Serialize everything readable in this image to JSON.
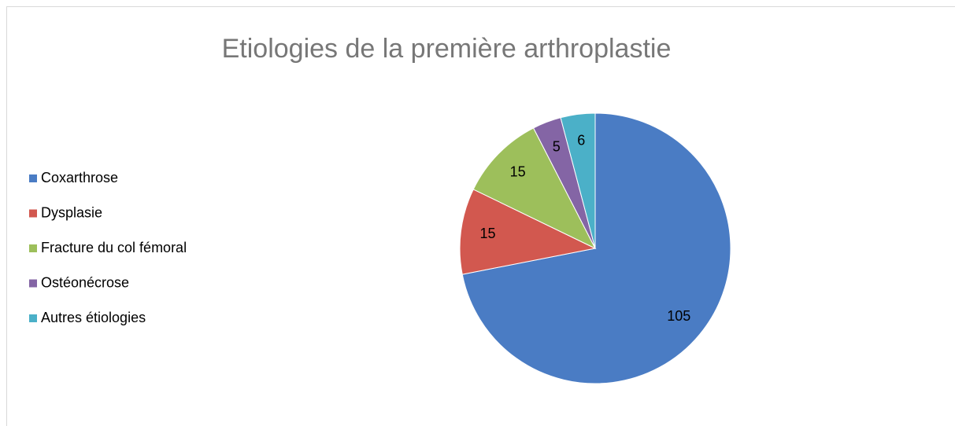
{
  "chart_data": {
    "type": "pie",
    "title": "Etiologies de la première arthroplastie",
    "categories": [
      "Coxarthrose",
      "Dysplasie",
      "Fracture du col fémoral",
      "Ostéonécrose",
      "Autres étiologies"
    ],
    "values": [
      105,
      15,
      15,
      5,
      6
    ],
    "colors": [
      "#4a7cc4",
      "#d2584f",
      "#9dbf5b",
      "#8465a5",
      "#4bb0c8"
    ],
    "legend": "left"
  }
}
